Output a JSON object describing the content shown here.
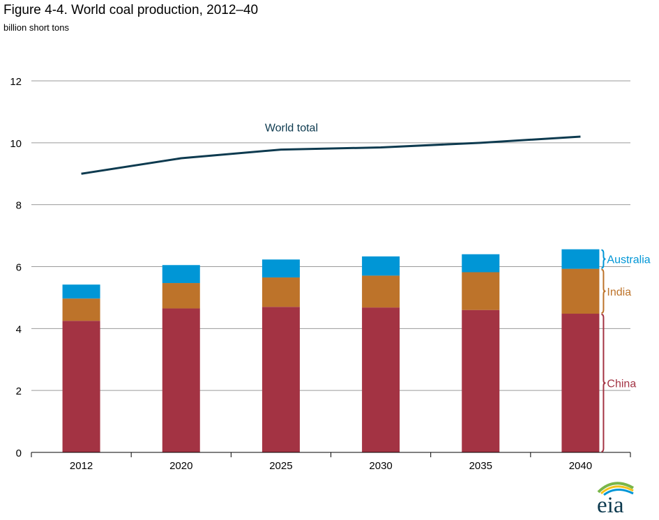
{
  "title": "Figure 4-4. World coal production, 2012–40",
  "subtitle": "billion short tons",
  "logo_text": "eia",
  "chart_data": {
    "type": "bar",
    "stacked": true,
    "title": "Figure 4-4. World coal production, 2012–40",
    "ylabel": "billion short tons",
    "xlabel": "",
    "categories": [
      "2012",
      "2020",
      "2025",
      "2030",
      "2035",
      "2040"
    ],
    "ylim": [
      0,
      12
    ],
    "yticks": [
      0,
      2,
      4,
      6,
      8,
      10,
      12
    ],
    "grid": true,
    "series": [
      {
        "name": "China",
        "color": "#a33343",
        "values": [
          4.25,
          4.65,
          4.7,
          4.68,
          4.6,
          4.48
        ]
      },
      {
        "name": "India",
        "color": "#bd732a",
        "values": [
          0.72,
          0.82,
          0.95,
          1.03,
          1.22,
          1.45
        ]
      },
      {
        "name": "Australia",
        "color": "#0096d6",
        "values": [
          0.45,
          0.58,
          0.58,
          0.62,
          0.58,
          0.63
        ]
      }
    ],
    "line_series": {
      "name": "World total",
      "label": "World total",
      "color": "#0d3a4f",
      "values": [
        9.0,
        9.5,
        9.78,
        9.85,
        10.0,
        10.2
      ]
    }
  }
}
